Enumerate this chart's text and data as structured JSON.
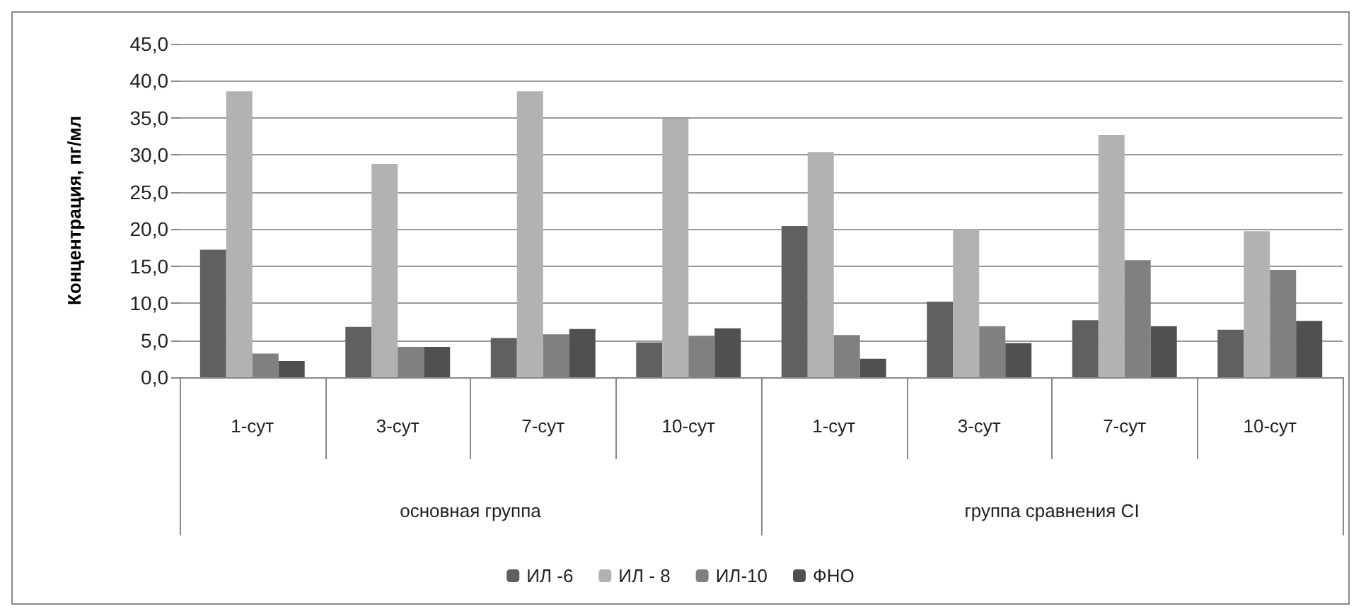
{
  "chart_data": {
    "type": "bar",
    "ylabel": "Концентрация, пг/мл",
    "categories": [
      "1-сут",
      "3-сут",
      "7-сут",
      "10-сут",
      "1-сут",
      "3-сут",
      "7-сут",
      "10-сут"
    ],
    "annotations": [
      "основная группа",
      "группа сравнения CI"
    ],
    "series": [
      {
        "name": "ИЛ -6",
        "color": "#606060",
        "values": [
          17.2,
          6.8,
          5.3,
          4.7,
          20.4,
          10.2,
          7.7,
          6.4
        ]
      },
      {
        "name": "ИЛ - 8",
        "color": "#b2b2b2",
        "values": [
          38.6,
          28.8,
          38.6,
          34.9,
          30.4,
          20.0,
          32.7,
          19.7
        ]
      },
      {
        "name": "ИЛ-10",
        "color": "#808080",
        "values": [
          3.2,
          4.1,
          5.8,
          5.6,
          5.7,
          6.9,
          15.8,
          14.5
        ]
      },
      {
        "name": "ФНО",
        "color": "#505050",
        "values": [
          2.2,
          4.1,
          6.5,
          6.6,
          2.5,
          4.6,
          6.9,
          7.6
        ]
      }
    ],
    "ylim": [
      0,
      45
    ],
    "yticks": [
      {
        "value": 0,
        "label": "0,0"
      },
      {
        "value": 5,
        "label": "5,0"
      },
      {
        "value": 10,
        "label": "10,0"
      },
      {
        "value": 15,
        "label": "15,0"
      },
      {
        "value": 20,
        "label": "20,0"
      },
      {
        "value": 25,
        "label": "25,0"
      },
      {
        "value": 30,
        "label": "30,0"
      },
      {
        "value": 35,
        "label": "35,0"
      },
      {
        "value": 40,
        "label": "40,0"
      },
      {
        "value": 45,
        "label": "45,0"
      }
    ],
    "grid": "y",
    "legend": "bottom"
  }
}
